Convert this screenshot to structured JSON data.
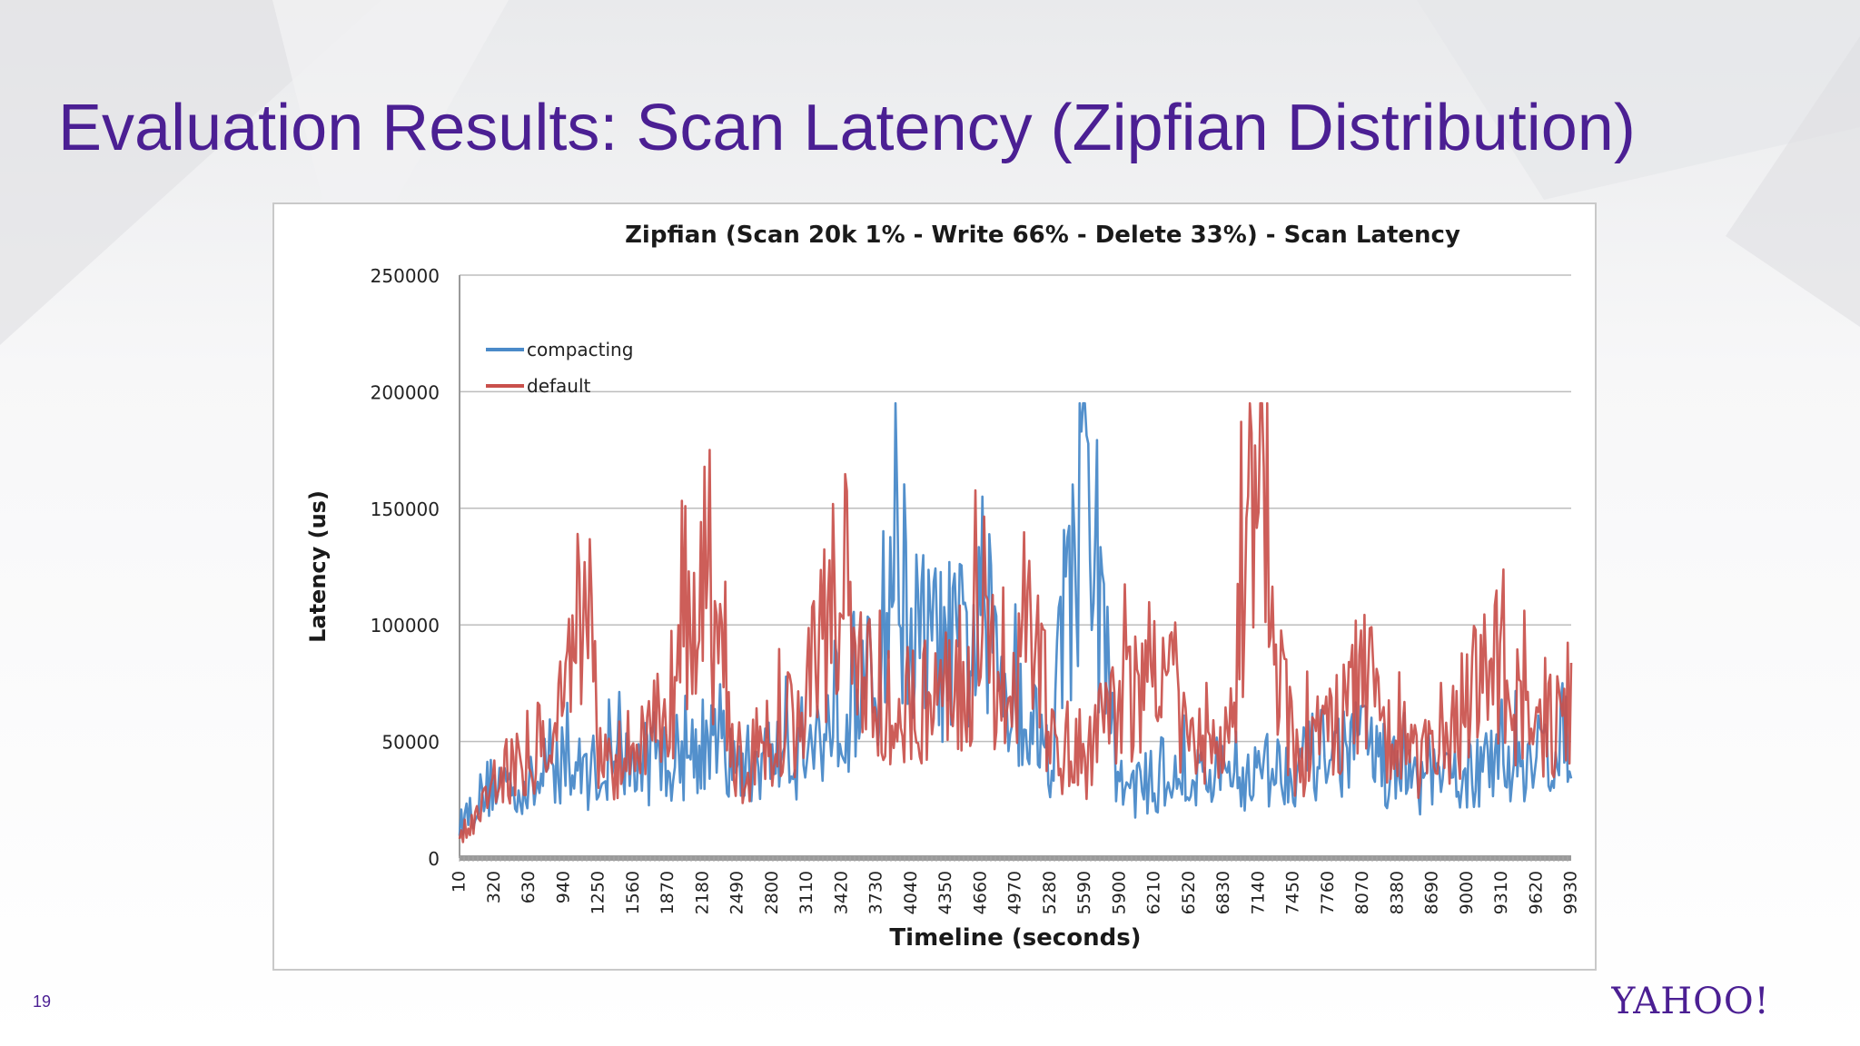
{
  "slide": {
    "title": "Evaluation Results: Scan Latency (Zipfian Distribution)",
    "page_number": "19",
    "logo_text": "YAHOO!",
    "title_color": "#4b1f93",
    "logo_color": "#4b1f93"
  },
  "chart_data": {
    "type": "line",
    "title": "Zipfian (Scan 20k 1% - Write 66% - Delete 33%) - Scan Latency",
    "xlabel": "Timeline (seconds)",
    "ylabel": "Latency (us)",
    "ylim": [
      0,
      250000
    ],
    "yticks": [
      0,
      50000,
      100000,
      150000,
      200000,
      250000
    ],
    "ytick_labels": [
      "0",
      "50000",
      "100000",
      "150000",
      "200000",
      "250000"
    ],
    "xlim": [
      10,
      9930
    ],
    "xtick_labels": [
      "10",
      "320",
      "630",
      "940",
      "1250",
      "1560",
      "1870",
      "2180",
      "2490",
      "2800",
      "3110",
      "3420",
      "3730",
      "4040",
      "4350",
      "4660",
      "4970",
      "5280",
      "5590",
      "5900",
      "6210",
      "6520",
      "6830",
      "7140",
      "7450",
      "7760",
      "8070",
      "8380",
      "8690",
      "9000",
      "9310",
      "9620",
      "9930"
    ],
    "grid": "horizontal",
    "legend_position": "top-left",
    "series": [
      {
        "name": "compacting",
        "color": "#4a8ac9",
        "x": [
          10,
          320,
          630,
          940,
          1250,
          1560,
          1870,
          2180,
          2490,
          2800,
          3110,
          3420,
          3730,
          3900,
          4040,
          4350,
          4500,
          4660,
          4970,
          5280,
          5400,
          5500,
          5590,
          5750,
          5900,
          6210,
          6520,
          6830,
          7140,
          7450,
          7760,
          8070,
          8380,
          8690,
          9000,
          9310,
          9620,
          9930
        ],
        "values": [
          15000,
          33000,
          30000,
          36000,
          38000,
          40000,
          42000,
          48000,
          38000,
          44000,
          45000,
          65000,
          75000,
          140000,
          95000,
          88000,
          90000,
          95000,
          70000,
          45000,
          100000,
          120000,
          150000,
          95000,
          30000,
          32000,
          35000,
          34000,
          36000,
          40000,
          45000,
          48000,
          35000,
          32000,
          36000,
          40000,
          42000,
          55000
        ]
      },
      {
        "name": "default",
        "color": "#c9504b",
        "x": [
          10,
          320,
          630,
          940,
          1100,
          1180,
          1250,
          1560,
          1870,
          2000,
          2180,
          2490,
          2800,
          3110,
          3420,
          3730,
          4040,
          4350,
          4660,
          4970,
          5100,
          5280,
          5590,
          5900,
          6210,
          6520,
          6830,
          7000,
          7140,
          7450,
          7760,
          8070,
          8380,
          8690,
          9000,
          9310,
          9620,
          9930
        ],
        "values": [
          8000,
          35000,
          45000,
          70000,
          110000,
          140000,
          40000,
          45000,
          60000,
          100000,
          130000,
          40000,
          45000,
          70000,
          120000,
          60000,
          65000,
          75000,
          85000,
          80000,
          120000,
          50000,
          45000,
          60000,
          90000,
          45000,
          50000,
          105000,
          150000,
          45000,
          55000,
          75000,
          50000,
          40000,
          65000,
          90000,
          45000,
          70000
        ]
      }
    ]
  }
}
